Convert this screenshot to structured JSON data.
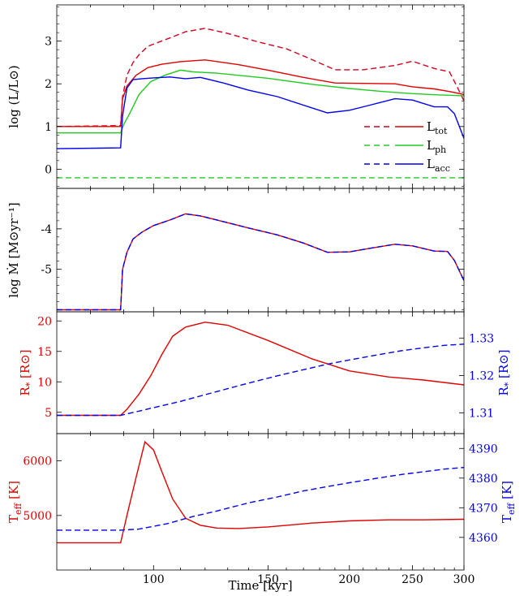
{
  "chart_data": {
    "type": "line",
    "x_axis": {
      "label": "Time [kyr]",
      "scale": "log",
      "lim": [
        71,
        300
      ],
      "ticks": [
        100,
        150,
        200,
        250,
        300
      ],
      "tick_labels": [
        "100",
        "150",
        "200",
        "250",
        "300"
      ]
    },
    "panels": [
      {
        "id": "luminosity",
        "ylabel": "log (L/L⊙)",
        "ylim": [
          -0.45,
          3.85
        ],
        "yticks": [
          0,
          1,
          2,
          3
        ],
        "ytick_labels": [
          "0",
          "1",
          "2",
          "3"
        ],
        "legend": {
          "position": "center-right",
          "entries": [
            {
              "main": "L",
              "sub": "tot",
              "color": "#d00020",
              "dash": true
            },
            {
              "main": "L",
              "sub": "ph",
              "color": "#22cc22",
              "dash": false
            },
            {
              "main": "L",
              "sub": "acc",
              "color": "#0000ee",
              "dash": true
            }
          ]
        },
        "series": [
          {
            "color": "#d00020",
            "dash": true,
            "x": [
              71,
              89,
              89.6,
              91,
              93,
              95,
              98,
              102,
              107,
              112,
              120,
              130,
              145,
              160,
              172,
              190,
              210,
              235,
              250,
              270,
              285,
              293,
              300
            ],
            "y": [
              1.0,
              1.02,
              1.7,
              2.2,
              2.5,
              2.68,
              2.88,
              2.98,
              3.1,
              3.22,
              3.3,
              3.18,
              2.98,
              2.82,
              2.62,
              2.33,
              2.33,
              2.43,
              2.53,
              2.36,
              2.28,
              1.92,
              1.6
            ]
          },
          {
            "color": "#e00000",
            "dash": false,
            "x": [
              71,
              89,
              89.6,
              91,
              94,
              98,
              103,
              110,
              120,
              135,
              150,
              170,
              190,
              210,
              235,
              250,
              270,
              285,
              300
            ],
            "y": [
              1.0,
              1.0,
              1.65,
              1.95,
              2.2,
              2.38,
              2.46,
              2.52,
              2.56,
              2.45,
              2.32,
              2.15,
              2.02,
              2.01,
              2.0,
              1.93,
              1.88,
              1.82,
              1.75
            ]
          },
          {
            "color": "#22cc22",
            "dash": false,
            "x": [
              71,
              89,
              90,
              92,
              95,
              99,
              104,
              110,
              115,
              125,
              150,
              175,
              200,
              225,
              250,
              275,
              300
            ],
            "y": [
              0.85,
              0.85,
              1.05,
              1.32,
              1.75,
              2.05,
              2.2,
              2.32,
              2.28,
              2.25,
              2.13,
              1.99,
              1.89,
              1.82,
              1.77,
              1.74,
              1.72
            ]
          },
          {
            "color": "#22cc22",
            "dash": true,
            "x": [
              71,
              300
            ],
            "y": [
              -0.2,
              -0.2
            ]
          },
          {
            "color": "#0000ee",
            "dash": false,
            "x": [
              71,
              89,
              89.6,
              91,
              93,
              96,
              100,
              106,
              112,
              118,
              128,
              140,
              155,
              170,
              185,
              200,
              215,
              235,
              250,
              270,
              283,
              290,
              300
            ],
            "y": [
              0.48,
              0.5,
              1.25,
              1.9,
              2.1,
              2.12,
              2.14,
              2.16,
              2.12,
              2.15,
              2.02,
              1.85,
              1.7,
              1.5,
              1.32,
              1.38,
              1.5,
              1.65,
              1.62,
              1.46,
              1.46,
              1.3,
              0.72
            ]
          }
        ]
      },
      {
        "id": "accretion",
        "ylabel": "log Ṁ [M⊙yr⁻¹]",
        "ylim": [
          -6.05,
          -3.0
        ],
        "yticks": [
          -4,
          -5
        ],
        "ytick_labels": [
          "-4",
          "-5"
        ],
        "series": [
          {
            "color": "#e00000",
            "dash": false,
            "x": [
              71,
              89,
              89.6,
              91,
              93,
              96,
              100,
              106,
              112,
              118,
              128,
              140,
              155,
              170,
              185,
              200,
              215,
              235,
              250,
              270,
              283,
              290,
              300
            ],
            "y": [
              -6.0,
              -6.0,
              -5.0,
              -4.58,
              -4.25,
              -4.08,
              -3.92,
              -3.78,
              -3.63,
              -3.68,
              -3.82,
              -3.98,
              -4.15,
              -4.35,
              -4.58,
              -4.57,
              -4.48,
              -4.38,
              -4.42,
              -4.55,
              -4.56,
              -4.78,
              -5.28
            ]
          },
          {
            "color": "#0000ee",
            "dash": true,
            "x": [
              71,
              89,
              89.6,
              91,
              93,
              96,
              100,
              106,
              112,
              118,
              128,
              140,
              155,
              170,
              185,
              200,
              215,
              235,
              250,
              270,
              283,
              290,
              300
            ],
            "y": [
              -6.0,
              -6.0,
              -5.0,
              -4.58,
              -4.25,
              -4.08,
              -3.92,
              -3.78,
              -3.63,
              -3.68,
              -3.82,
              -3.98,
              -4.15,
              -4.35,
              -4.58,
              -4.57,
              -4.48,
              -4.38,
              -4.42,
              -4.55,
              -4.56,
              -4.78,
              -5.28
            ]
          }
        ]
      },
      {
        "id": "radius",
        "ylabel_left": {
          "main": "R",
          "sub": "*",
          "unit": "[R⊙]"
        },
        "ylabel_right": {
          "main": "R",
          "sub": "*",
          "unit": "[R⊙]"
        },
        "ylim_left": [
          1.5,
          21.5
        ],
        "yticks_left": [
          5,
          10,
          15,
          20
        ],
        "ytick_labels_left": [
          "5",
          "10",
          "15",
          "20"
        ],
        "ylim_right": [
          1.3045,
          1.337
        ],
        "yticks_right": [
          1.31,
          1.32,
          1.33
        ],
        "ytick_labels_right": [
          "1.31",
          "1.32",
          "1.33"
        ],
        "series": [
          {
            "color": "#e00000",
            "dash": false,
            "axis": "left",
            "x": [
              71,
              89,
              91,
              95,
              99,
              103,
              107,
              112,
              120,
              130,
              150,
              175,
              200,
              230,
              260,
              300
            ],
            "y": [
              4.5,
              4.5,
              5.5,
              8,
              11,
              14.5,
              17.5,
              19.0,
              19.8,
              19.3,
              16.8,
              13.8,
              11.8,
              10.8,
              10.3,
              9.5
            ]
          },
          {
            "color": "#0000ee",
            "dash": true,
            "axis": "left",
            "x": [
              71,
              89,
              95,
              110,
              125,
              140,
              155,
              170,
              185,
              200,
              220,
              240,
              260,
              280,
              300
            ],
            "y": [
              4.5,
              4.5,
              5.2,
              6.8,
              8.4,
              9.8,
              11.0,
              12.0,
              12.9,
              13.6,
              14.4,
              15.1,
              15.6,
              16.0,
              16.2
            ]
          }
        ]
      },
      {
        "id": "temperature",
        "ylabel_left": {
          "main": "T",
          "sub": "eff",
          "unit": "[K]"
        },
        "ylabel_right": {
          "main": "T",
          "sub": "eff",
          "unit": "[K]"
        },
        "ylim_left": [
          4000,
          6500
        ],
        "yticks_left": [
          5000,
          6000
        ],
        "ytick_labels_left": [
          "5000",
          "6000"
        ],
        "ylim_right": [
          4349,
          4395
        ],
        "yticks_right": [
          4360,
          4370,
          4380,
          4390
        ],
        "ytick_labels_right": [
          "4360",
          "4370",
          "4380",
          "4390"
        ],
        "series": [
          {
            "color": "#e00000",
            "dash": false,
            "axis": "left",
            "x": [
              71,
              89,
              91,
              94,
              97,
              100,
              103,
              107,
              112,
              118,
              125,
              135,
              150,
              175,
              200,
              230,
              260,
              300
            ],
            "y": [
              4500,
              4500,
              5000,
              5700,
              6350,
              6200,
              5800,
              5300,
              4950,
              4820,
              4770,
              4760,
              4790,
              4860,
              4900,
              4920,
              4920,
              4930
            ]
          },
          {
            "color": "#0000ee",
            "dash": true,
            "axis": "left",
            "x": [
              71,
              89,
              95,
              105,
              115,
              125,
              140,
              155,
              170,
              185,
              200,
              220,
              240,
              260,
              280,
              300
            ],
            "y": [
              4730,
              4730,
              4750,
              4850,
              4980,
              5080,
              5230,
              5340,
              5450,
              5530,
              5600,
              5680,
              5750,
              5800,
              5850,
              5880
            ]
          }
        ]
      }
    ]
  }
}
